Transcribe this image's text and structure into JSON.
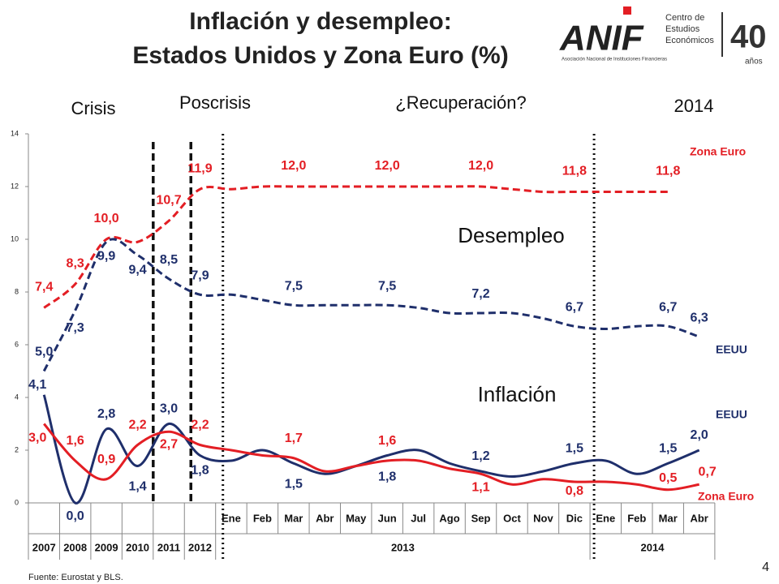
{
  "chart_data": {
    "type": "line",
    "title": "Inflación y desempleo:",
    "subtitle": "Estados Unidos y Zona Euro (%)",
    "categories": [
      null,
      null,
      null,
      null,
      null,
      null,
      "Ene",
      "Feb",
      "Mar",
      "Abr",
      "May",
      "Jun",
      "Jul",
      "Ago",
      "Sep",
      "Oct",
      "Nov",
      "Dic",
      "Ene",
      "Feb",
      "Mar",
      "Abr"
    ],
    "category_groups": [
      {
        "label": "2007",
        "count": 1
      },
      {
        "label": "2008",
        "count": 1
      },
      {
        "label": "2009",
        "count": 1
      },
      {
        "label": "2010",
        "count": 1
      },
      {
        "label": "2011",
        "count": 1
      },
      {
        "label": "2012",
        "count": 1
      },
      {
        "label": "2013",
        "count": 12
      },
      {
        "label": "2014",
        "count": 4
      }
    ],
    "ylim": [
      0,
      14
    ],
    "yticks": [
      0,
      2,
      4,
      6,
      8,
      10,
      12,
      14
    ],
    "series": [
      {
        "name": "Zona Euro",
        "color": "#e31e24",
        "style": "dashed",
        "values": [
          7.4,
          8.3,
          10.0,
          9.9,
          10.7,
          11.9,
          11.9,
          12.0,
          12.0,
          12.0,
          12.0,
          12.0,
          12.0,
          12.0,
          12.0,
          11.9,
          11.8,
          11.8,
          11.8,
          11.8,
          11.8,
          null
        ],
        "value_labels": [
          "7,4",
          "8,3",
          "10,0",
          null,
          "10,7",
          "11,9",
          null,
          null,
          "12,0",
          null,
          null,
          "12,0",
          null,
          null,
          "12,0",
          null,
          null,
          "11,8",
          null,
          null,
          "11,8",
          null
        ]
      },
      {
        "name": "EEUU",
        "color": "#1f2f6b",
        "style": "dashed",
        "values": [
          5.0,
          7.3,
          9.9,
          9.4,
          8.5,
          7.9,
          7.9,
          7.7,
          7.5,
          7.5,
          7.5,
          7.5,
          7.4,
          7.2,
          7.2,
          7.2,
          7.0,
          6.7,
          6.6,
          6.7,
          6.7,
          6.3
        ],
        "value_labels": [
          "5,0",
          "7,3",
          "9,9",
          "9,4",
          "8,5",
          "7,9",
          null,
          null,
          "7,5",
          null,
          null,
          "7,5",
          null,
          null,
          "7,2",
          null,
          null,
          "6,7",
          null,
          null,
          "6,7",
          "6,3"
        ]
      },
      {
        "name": "EEUU",
        "color": "#1f2f6b",
        "style": "solid",
        "values": [
          4.1,
          0.0,
          2.8,
          1.4,
          3.0,
          1.8,
          1.6,
          2.0,
          1.5,
          1.1,
          1.4,
          1.8,
          2.0,
          1.5,
          1.2,
          1.0,
          1.2,
          1.5,
          1.6,
          1.1,
          1.5,
          2.0
        ],
        "value_labels": [
          "4,1",
          "0,0",
          "2,8",
          "1,4",
          "3,0",
          "1,8",
          null,
          null,
          "1,5",
          null,
          null,
          "1,8",
          null,
          null,
          "1,2",
          null,
          null,
          "1,5",
          null,
          null,
          "1,5",
          "2,0"
        ]
      },
      {
        "name": "Zona Euro",
        "color": "#e31e24",
        "style": "solid",
        "values": [
          3.0,
          1.6,
          0.9,
          2.2,
          2.7,
          2.2,
          2.0,
          1.8,
          1.7,
          1.2,
          1.4,
          1.6,
          1.6,
          1.3,
          1.1,
          0.7,
          0.9,
          0.8,
          0.8,
          0.7,
          0.5,
          0.7
        ],
        "value_labels": [
          "3,0",
          "1,6",
          "0,9",
          "2,2",
          "2,7",
          "2,2",
          null,
          null,
          "1,7",
          null,
          null,
          "1,6",
          null,
          null,
          "1,1",
          null,
          null,
          "0,8",
          null,
          null,
          "0,5",
          "0,7"
        ]
      }
    ],
    "annotations": [
      "Crisis",
      "Poscrisis",
      "¿Recuperación?",
      "2014",
      "Desempleo",
      "Inflación"
    ]
  },
  "logo": {
    "name": "ANIF",
    "tagline": "Asociación Nacional de Instituciones Financieras",
    "center": [
      "Centro de",
      "Estudios",
      "Económicos"
    ],
    "anniversary": "40",
    "years": "años"
  },
  "footer": {
    "source": "Fuente: Eurostat y BLS.",
    "page": "4"
  }
}
